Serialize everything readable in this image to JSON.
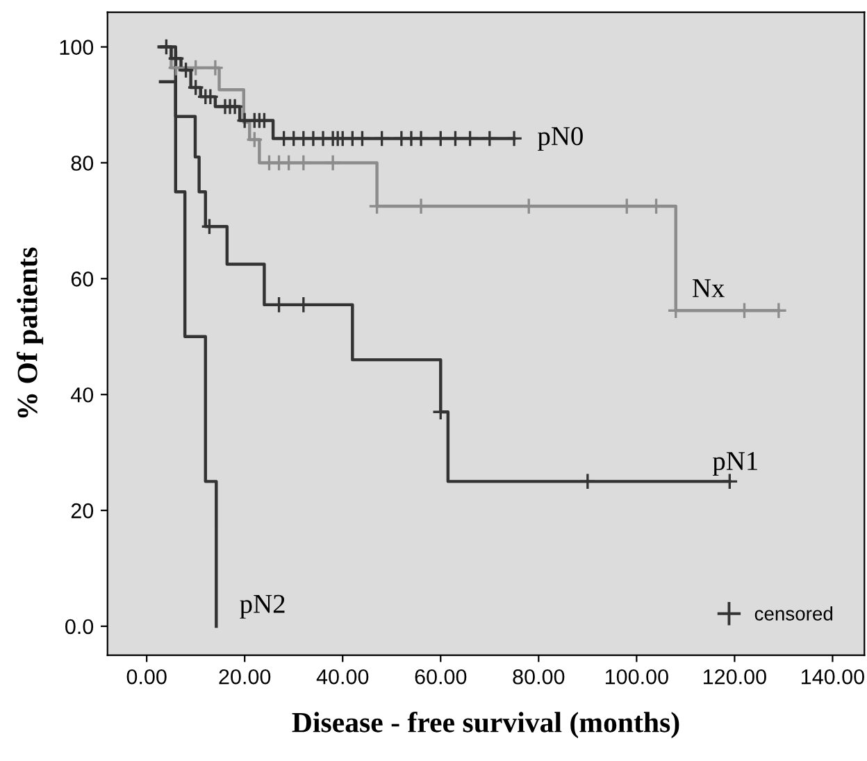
{
  "chart_data": {
    "type": "step",
    "xlabel": "Disease - free survival (months)",
    "ylabel": "% Of patients",
    "xlim": [
      -8,
      146.5
    ],
    "ylim": [
      -5,
      106
    ],
    "xticks": [
      {
        "value": 0,
        "label": "0.00"
      },
      {
        "value": 20,
        "label": "20.00"
      },
      {
        "value": 40,
        "label": "40.00"
      },
      {
        "value": 60,
        "label": "60.00"
      },
      {
        "value": 80,
        "label": "80.00"
      },
      {
        "value": 100,
        "label": "100.00"
      },
      {
        "value": 120,
        "label": "120.00"
      },
      {
        "value": 140,
        "label": "140.00"
      }
    ],
    "yticks": [
      {
        "value": 0,
        "label": "0.0"
      },
      20,
      40,
      60,
      80,
      100
    ],
    "grid": false,
    "legend": "bottom right",
    "marker": "none",
    "line_style": "solid",
    "series": [
      {
        "name": "Nx",
        "color": "#8c8c8c",
        "x": [
          3,
          5,
          14.8,
          19.8,
          21,
          23,
          47,
          108,
          129
        ],
        "values": [
          100,
          96.4,
          92.6,
          87,
          84,
          80,
          72.5,
          54.5,
          54.5
        ]
      },
      {
        "name": "pN0",
        "color": "#333333",
        "x": [
          3,
          5,
          7,
          9,
          11,
          14,
          19,
          25.8,
          75
        ],
        "values": [
          100,
          98,
          96,
          93,
          91.4,
          89.7,
          87.3,
          84.2,
          84.2
        ]
      },
      {
        "name": "pN1",
        "color": "#333333",
        "x": [
          2.5,
          5.9,
          9.9,
          10.7,
          12,
          16.4,
          24,
          42,
          60,
          61.5,
          119
        ],
        "values": [
          100,
          88,
          81,
          75,
          69,
          62.5,
          55.5,
          46,
          37,
          25,
          25
        ]
      },
      {
        "name": "pN2",
        "color": "#333333",
        "x": [
          2.8,
          5.9,
          7.8,
          12,
          14.2
        ],
        "values": [
          94,
          75,
          50,
          25,
          0
        ]
      },
      {
        "type": "scatter",
        "color": "#8c8c8c",
        "marker": "cross",
        "x": [
          6,
          10,
          14,
          22,
          25,
          27,
          29,
          32,
          38,
          47,
          56,
          78,
          98,
          104,
          108,
          122,
          129
        ],
        "values": [
          96.4,
          96.4,
          96.4,
          84,
          80,
          80,
          80,
          80,
          80,
          72.5,
          72.5,
          72.5,
          72.5,
          72.5,
          54.5,
          54.5,
          54.5
        ]
      },
      {
        "type": "scatter",
        "name": "censored",
        "color": "#333333",
        "marker": "cross",
        "x": [
          4,
          6,
          8,
          10,
          12,
          13,
          16,
          17,
          18,
          20,
          22,
          23,
          24,
          28,
          30,
          32,
          34,
          36,
          38,
          39,
          40,
          42,
          44,
          48,
          52,
          54,
          56,
          60,
          63,
          66,
          70,
          75,
          12.8,
          27,
          32,
          60,
          90,
          119
        ],
        "values": [
          100,
          98,
          96,
          93,
          91.4,
          91.4,
          89.7,
          89.7,
          89.7,
          87.3,
          87.3,
          87.3,
          87.3,
          84.2,
          84.2,
          84.2,
          84.2,
          84.2,
          84.2,
          84.2,
          84.2,
          84.2,
          84.2,
          84.2,
          84.2,
          84.2,
          84.2,
          84.2,
          84.2,
          84.2,
          84.2,
          84.2,
          69,
          55.5,
          55.5,
          37,
          25,
          25
        ]
      }
    ]
  }
}
